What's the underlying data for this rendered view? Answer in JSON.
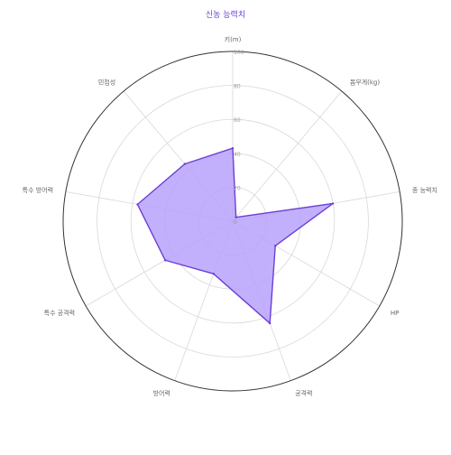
{
  "chart_data": {
    "type": "radar",
    "title": "신농 능력치",
    "axes": [
      "키(m)",
      "몸무게(kg)",
      "종 능력치",
      "HP",
      "공격력",
      "방어력",
      "특수 공격력",
      "특수 방어력",
      "민첩성"
    ],
    "rticks": [
      "0",
      "20",
      "40",
      "60",
      "80",
      "100"
    ],
    "rlim": [
      0,
      100
    ],
    "series": [
      {
        "values": [
          43,
          3,
          60,
          29,
          64,
          33,
          46,
          57,
          44
        ]
      }
    ],
    "colors": {
      "title": "#6a3fd6",
      "fill": "#b9a2fb",
      "stroke": "#6a3fd6",
      "grid": "#d8d8d8",
      "outer": "#333333",
      "label": "#666666",
      "tick": "#999999"
    },
    "grid": true
  }
}
